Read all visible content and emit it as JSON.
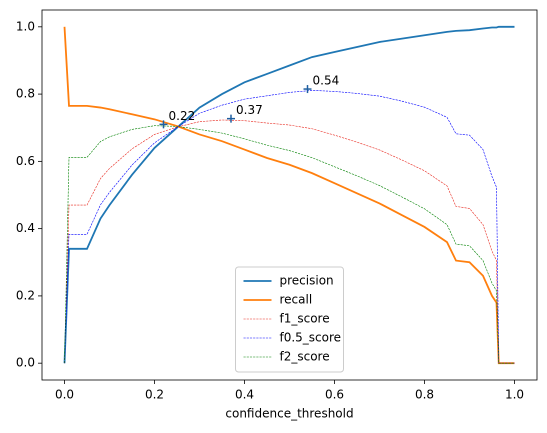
{
  "chart_data": {
    "type": "line",
    "xlabel": "confidence_threshold",
    "x": [
      0,
      0.01,
      0.05,
      0.08,
      0.1,
      0.15,
      0.2,
      0.25,
      0.3,
      0.35,
      0.4,
      0.45,
      0.5,
      0.55,
      0.6,
      0.65,
      0.7,
      0.75,
      0.8,
      0.85,
      0.87,
      0.9,
      0.93,
      0.95,
      0.96,
      0.965,
      0.97,
      1.0
    ],
    "series": [
      {
        "name": "precision",
        "color": "#1f77b4",
        "dashed": false,
        "linewidth": 1.8,
        "values": [
          0,
          0.34,
          0.34,
          0.43,
          0.47,
          0.56,
          0.64,
          0.7,
          0.76,
          0.8,
          0.835,
          0.86,
          0.885,
          0.91,
          0.925,
          0.94,
          0.955,
          0.965,
          0.975,
          0.985,
          0.988,
          0.99,
          0.995,
          0.998,
          0.998,
          1.0,
          1.0,
          1.0
        ]
      },
      {
        "name": "recall",
        "color": "#ff7f0e",
        "dashed": false,
        "linewidth": 1.8,
        "values": [
          1.0,
          0.765,
          0.765,
          0.76,
          0.755,
          0.74,
          0.725,
          0.705,
          0.68,
          0.66,
          0.635,
          0.61,
          0.59,
          0.565,
          0.535,
          0.505,
          0.475,
          0.44,
          0.405,
          0.36,
          0.305,
          0.3,
          0.26,
          0.2,
          0.18,
          0,
          0,
          0
        ]
      },
      {
        "name": "f1_score",
        "color": "#e8281e",
        "dashed": true,
        "linewidth": 0.6,
        "values": [
          0,
          0.47,
          0.47,
          0.549,
          0.579,
          0.637,
          0.68,
          0.702,
          0.718,
          0.723,
          0.721,
          0.714,
          0.708,
          0.697,
          0.678,
          0.657,
          0.634,
          0.604,
          0.572,
          0.527,
          0.466,
          0.46,
          0.412,
          0.333,
          0.305,
          0,
          0,
          0
        ]
      },
      {
        "name": "f0.5_score",
        "color": "#0000ff",
        "dashed": true,
        "linewidth": 0.6,
        "values": [
          0,
          0.383,
          0.383,
          0.471,
          0.508,
          0.589,
          0.655,
          0.701,
          0.743,
          0.767,
          0.785,
          0.795,
          0.805,
          0.811,
          0.808,
          0.802,
          0.794,
          0.779,
          0.761,
          0.731,
          0.682,
          0.678,
          0.635,
          0.555,
          0.523,
          0,
          0,
          0
        ]
      },
      {
        "name": "f2_score",
        "color": "#008000",
        "dashed": true,
        "linewidth": 0.6,
        "values": [
          0,
          0.612,
          0.612,
          0.659,
          0.673,
          0.695,
          0.706,
          0.704,
          0.695,
          0.684,
          0.667,
          0.648,
          0.632,
          0.611,
          0.584,
          0.557,
          0.528,
          0.494,
          0.459,
          0.412,
          0.354,
          0.349,
          0.305,
          0.238,
          0.215,
          0,
          0,
          0
        ]
      }
    ],
    "annotations": [
      {
        "x": 0.22,
        "y": 0.71,
        "label": "0.22"
      },
      {
        "x": 0.37,
        "y": 0.727,
        "label": "0.37"
      },
      {
        "x": 0.54,
        "y": 0.815,
        "label": "0.54"
      }
    ],
    "marker_color": "#1f5fa0",
    "xlim": [
      -0.05,
      1.05
    ],
    "ylim": [
      -0.05,
      1.05
    ],
    "xticks": [
      {
        "value": 0,
        "label": "0.0"
      },
      {
        "value": 0.2,
        "label": "0.2"
      },
      {
        "value": 0.4,
        "label": "0.4"
      },
      {
        "value": 0.6,
        "label": "0.6"
      },
      {
        "value": 0.8,
        "label": "0.8"
      },
      {
        "value": 1,
        "label": "1.0"
      }
    ],
    "yticks": [
      {
        "value": 0,
        "label": "0.0"
      },
      {
        "value": 0.2,
        "label": "0.2"
      },
      {
        "value": 0.4,
        "label": "0.4"
      },
      {
        "value": 0.6,
        "label": "0.6"
      },
      {
        "value": 0.8,
        "label": "0.8"
      },
      {
        "value": 1,
        "label": "1.0"
      }
    ],
    "grid": false,
    "legend": "lower center"
  }
}
